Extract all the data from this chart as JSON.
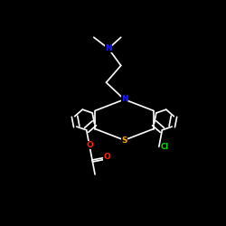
{
  "bg_color": "#000000",
  "bond_color": "#ffffff",
  "N_color": "#1a1aff",
  "S_color": "#ffa500",
  "O_color": "#ff2200",
  "Cl_color": "#00dd00",
  "lw": 1.2,
  "fs": 6.5,
  "xlim": [
    0,
    10
  ],
  "ylim": [
    0,
    10
  ]
}
